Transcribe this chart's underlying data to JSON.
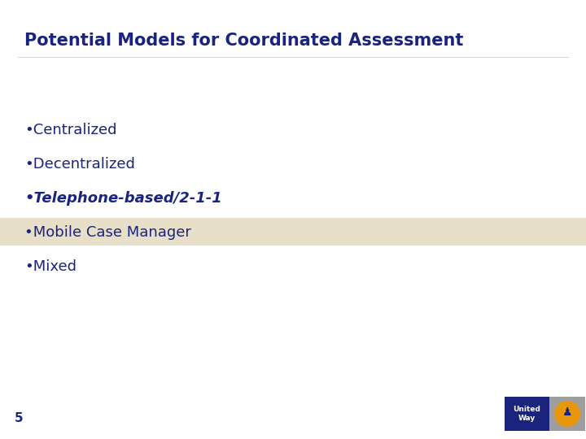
{
  "title": "Potential Models for Coordinated Assessment",
  "title_color": "#1a237e",
  "title_fontsize": 15,
  "background_color": "#ffffff",
  "bullet_items": [
    {
      "text": "Centralized",
      "italic": false,
      "bold": false,
      "highlight": false
    },
    {
      "text": "Decentralized",
      "italic": false,
      "bold": false,
      "highlight": false
    },
    {
      "text": "Telephone-based/2-1-1",
      "italic": true,
      "bold": true,
      "highlight": false
    },
    {
      "text": "Mobile Case Manager",
      "italic": false,
      "bold": false,
      "highlight": true
    },
    {
      "text": "Mixed",
      "italic": false,
      "bold": false,
      "highlight": false
    }
  ],
  "bullet_color": "#1a237e",
  "bullet_fontsize": 13,
  "highlight_color": "#e8dfc8",
  "page_number": "5",
  "page_number_color": "#1a237e",
  "page_number_fontsize": 11,
  "uw_blue": "#1a237e",
  "uw_grey": "#9e9e9e"
}
